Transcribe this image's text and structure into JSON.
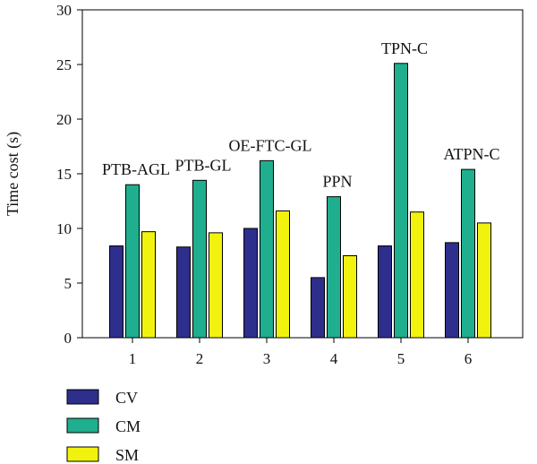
{
  "chart_data": {
    "type": "bar",
    "categories": [
      "1",
      "2",
      "3",
      "4",
      "5",
      "6"
    ],
    "group_labels": [
      "PTB-AGL",
      "PTB-GL",
      "OE-FTC-GL",
      "PPN",
      "TPN-C",
      "ATPN-C"
    ],
    "series": [
      {
        "name": "CV",
        "color": "#2e2e8c",
        "values": [
          8.4,
          8.3,
          10.0,
          5.5,
          8.4,
          8.7
        ]
      },
      {
        "name": "CM",
        "color": "#1fae8e",
        "values": [
          14.0,
          14.4,
          16.2,
          12.9,
          25.1,
          15.4
        ]
      },
      {
        "name": "SM",
        "color": "#f2f20f",
        "values": [
          9.7,
          9.6,
          11.6,
          7.5,
          11.5,
          10.5
        ]
      }
    ],
    "title": "",
    "xlabel": "",
    "ylabel": "Time cost (s)",
    "ylim": [
      0,
      30
    ],
    "yticks": [
      "0",
      "5",
      "10",
      "15",
      "20",
      "25",
      "30"
    ],
    "grid": false,
    "legend_position": "bottom-left"
  }
}
